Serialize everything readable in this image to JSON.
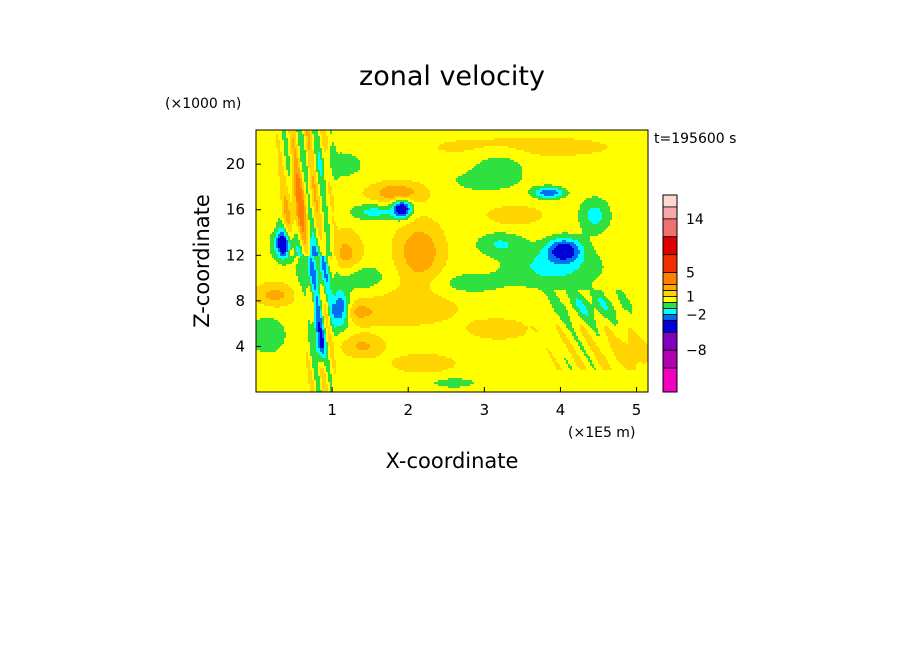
{
  "chart_data": {
    "type": "heatmap",
    "title": "zonal velocity",
    "xlabel": "X-coordinate",
    "ylabel": "Z-coordinate",
    "x_unit": "(×1E5 m)",
    "y_unit": "(×1000 m)",
    "time_label": "t=195600 s",
    "xlim": [
      0,
      5.15
    ],
    "ylim": [
      0,
      23
    ],
    "x_ticks": [
      1,
      2,
      3,
      4,
      5
    ],
    "y_ticks": [
      4,
      8,
      12,
      16,
      20
    ],
    "grid": false,
    "colorbar": {
      "labels": [
        {
          "value": "14",
          "level": 14
        },
        {
          "value": "5",
          "level": 5
        },
        {
          "value": "1",
          "level": 1
        },
        {
          "value": "−2",
          "level": -2
        },
        {
          "value": "−8",
          "level": -8
        }
      ],
      "levels": [
        {
          "lo": 16,
          "hi": 18,
          "color": "#ffd8d0"
        },
        {
          "lo": 14,
          "hi": 16,
          "color": "#f8a8a8"
        },
        {
          "lo": 11,
          "hi": 14,
          "color": "#f07070"
        },
        {
          "lo": 8,
          "hi": 11,
          "color": "#e00000"
        },
        {
          "lo": 5,
          "hi": 8,
          "color": "#f03000"
        },
        {
          "lo": 3,
          "hi": 5,
          "color": "#ff8000"
        },
        {
          "lo": 2,
          "hi": 3,
          "color": "#ffa800"
        },
        {
          "lo": 1,
          "hi": 2,
          "color": "#ffd400"
        },
        {
          "lo": 0,
          "hi": 1,
          "color": "#ffff00"
        },
        {
          "lo": -1,
          "hi": 0,
          "color": "#30e040"
        },
        {
          "lo": -2,
          "hi": -1,
          "color": "#00ffff"
        },
        {
          "lo": -3,
          "hi": -2,
          "color": "#0070f0"
        },
        {
          "lo": -5,
          "hi": -3,
          "color": "#0000d8"
        },
        {
          "lo": -8,
          "hi": -5,
          "color": "#8000c0"
        },
        {
          "lo": -11,
          "hi": -8,
          "color": "#b000b0"
        },
        {
          "lo": -15,
          "hi": -11,
          "color": "#f000c0"
        }
      ]
    },
    "field_features": [
      {
        "x": 2.15,
        "z": 12.3,
        "amp": 2.4,
        "sx": 0.28,
        "sz": 2.4
      },
      {
        "x": 1.15,
        "z": 12.0,
        "amp": 2.0,
        "sx": 0.22,
        "sz": 2.0
      },
      {
        "x": 1.85,
        "z": 17.5,
        "amp": 2.2,
        "sx": 0.35,
        "sz": 0.9
      },
      {
        "x": 0.55,
        "z": 16.0,
        "amp": 2.2,
        "sx": 0.15,
        "sz": 3.5
      },
      {
        "x": 0.25,
        "z": 8.5,
        "amp": 1.8,
        "sx": 0.25,
        "sz": 1.0
      },
      {
        "x": 1.4,
        "z": 4.0,
        "amp": 1.6,
        "sx": 0.25,
        "sz": 0.9
      },
      {
        "x": 1.3,
        "z": 7.0,
        "amp": 1.5,
        "sx": 0.3,
        "sz": 0.9
      },
      {
        "x": 3.2,
        "z": 5.5,
        "amp": 1.3,
        "sx": 0.35,
        "sz": 0.8
      },
      {
        "x": 2.2,
        "z": 2.5,
        "amp": 1.2,
        "sx": 0.4,
        "sz": 0.8
      },
      {
        "x": 4.9,
        "z": 3.5,
        "amp": 1.0,
        "sx": 0.3,
        "sz": 1.5
      },
      {
        "x": 3.4,
        "z": 15.5,
        "amp": 1.2,
        "sx": 0.35,
        "sz": 0.8
      },
      {
        "x": 1.92,
        "z": 16.1,
        "amp": -5.0,
        "sx": 0.12,
        "sz": 0.8
      },
      {
        "x": 0.36,
        "z": 13.0,
        "amp": -4.5,
        "sx": 0.13,
        "sz": 1.3
      },
      {
        "x": 1.1,
        "z": 7.2,
        "amp": -4.5,
        "sx": 0.13,
        "sz": 1.5
      },
      {
        "x": 4.05,
        "z": 12.5,
        "amp": -4.0,
        "sx": 0.22,
        "sz": 1.0
      },
      {
        "x": 3.85,
        "z": 17.5,
        "amp": -3.5,
        "sx": 0.2,
        "sz": 0.5
      },
      {
        "x": 0.85,
        "z": 4.0,
        "amp": -3.5,
        "sx": 0.06,
        "sz": 1.5
      },
      {
        "x": 0.8,
        "z": 6.0,
        "amp": -3.0,
        "sx": 0.06,
        "sz": 2.0
      },
      {
        "x": 0.8,
        "z": 11.0,
        "amp": -2.5,
        "sx": 0.25,
        "sz": 2.5
      },
      {
        "x": 1.35,
        "z": 10.0,
        "amp": -1.6,
        "sx": 0.35,
        "sz": 1.2
      },
      {
        "x": 1.55,
        "z": 15.8,
        "amp": -2.0,
        "sx": 0.3,
        "sz": 0.7
      },
      {
        "x": 3.2,
        "z": 13.0,
        "amp": -1.6,
        "sx": 0.3,
        "sz": 1.0
      },
      {
        "x": 3.9,
        "z": 11.0,
        "amp": -2.0,
        "sx": 0.6,
        "sz": 1.8
      },
      {
        "x": 4.45,
        "z": 15.5,
        "amp": -2.0,
        "sx": 0.2,
        "sz": 1.5
      },
      {
        "x": 2.8,
        "z": 9.5,
        "amp": -1.2,
        "sx": 0.45,
        "sz": 1.0
      },
      {
        "x": 3.0,
        "z": 18.5,
        "amp": -1.0,
        "sx": 0.5,
        "sz": 1.0
      },
      {
        "x": 4.4,
        "z": 7.5,
        "amp": -1.3,
        "sx": 0.5,
        "sz": 1.3
      },
      {
        "x": 0.15,
        "z": 5.0,
        "amp": -1.1,
        "sx": 0.3,
        "sz": 2.0
      },
      {
        "x": 2.6,
        "z": 0.8,
        "amp": -0.9,
        "sx": 0.4,
        "sz": 0.6
      },
      {
        "x": 3.2,
        "z": 20.0,
        "amp": -1.2,
        "sx": 0.35,
        "sz": 1.3
      },
      {
        "x": 1.1,
        "z": 20.0,
        "amp": -1.0,
        "sx": 0.4,
        "sz": 1.5
      },
      {
        "x": 3.5,
        "z": 21.5,
        "amp": 0.7,
        "sx": 1.5,
        "sz": 1.2
      },
      {
        "x": 2.0,
        "z": 7.5,
        "amp": 0.8,
        "sx": 0.8,
        "sz": 2.0
      }
    ],
    "field_background": 0.6,
    "field_waves": [
      {
        "amp": 1.6,
        "kx": 30.0,
        "kz": 0.55,
        "x0": 0.2,
        "x1": 1.1,
        "z0": 12.0,
        "z1": 23.0
      },
      {
        "amp": 1.2,
        "kx": 36.0,
        "kz": 0.9,
        "x0": 0.6,
        "x1": 1.1,
        "z0": 0.0,
        "z1": 12.0
      },
      {
        "amp": 0.7,
        "kx": 20.0,
        "kz": 1.8,
        "x0": 3.5,
        "x1": 5.15,
        "z0": 2.0,
        "z1": 9.0
      }
    ]
  }
}
